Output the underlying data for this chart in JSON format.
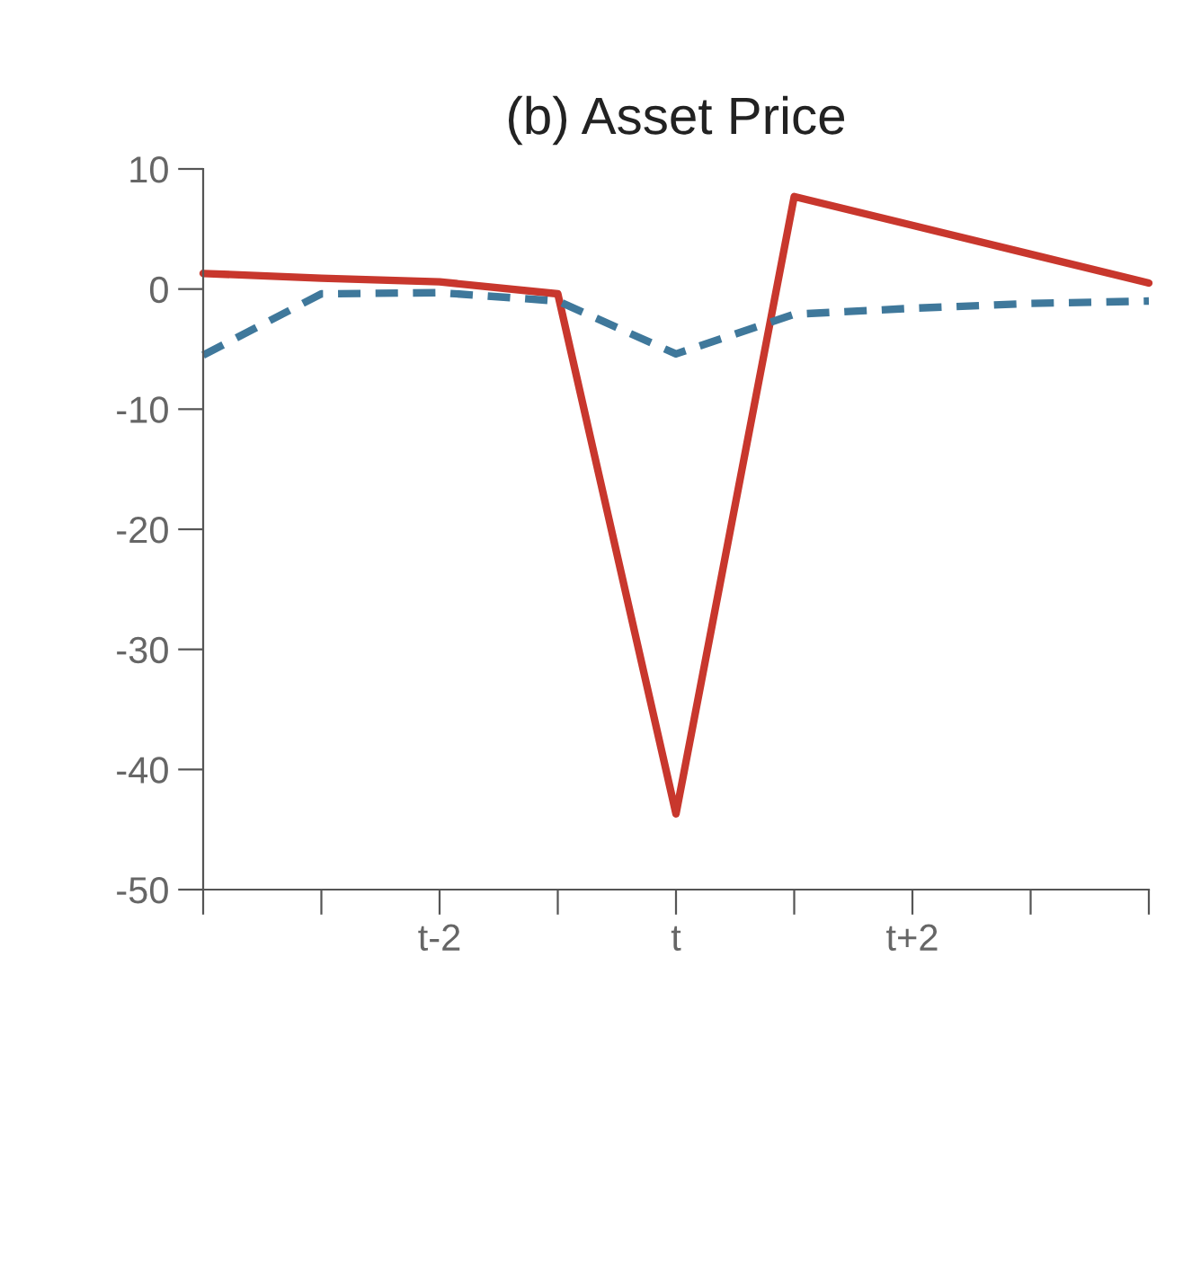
{
  "chart_data": {
    "type": "line",
    "title": "(b) Asset Price",
    "categories": [
      null,
      null,
      "t-2",
      null,
      "t",
      null,
      "t+2",
      null,
      null
    ],
    "series": [
      {
        "color": "#c8372d",
        "line_style": "solid",
        "values": [
          1.3,
          0.9,
          0.6,
          -0.4,
          -43.7,
          7.7,
          5.3,
          2.9,
          0.5
        ]
      },
      {
        "color": "#3f789b",
        "line_style": "dashed",
        "values": [
          -5.5,
          -0.4,
          -0.3,
          -1.0,
          -5.4,
          -2.1,
          -1.6,
          -1.2,
          -1.0
        ]
      }
    ],
    "ylim": [
      -50,
      10
    ],
    "yticks": [
      -50,
      -40,
      -30,
      -20,
      -10,
      0,
      10
    ],
    "grid": false,
    "marker": "none"
  }
}
